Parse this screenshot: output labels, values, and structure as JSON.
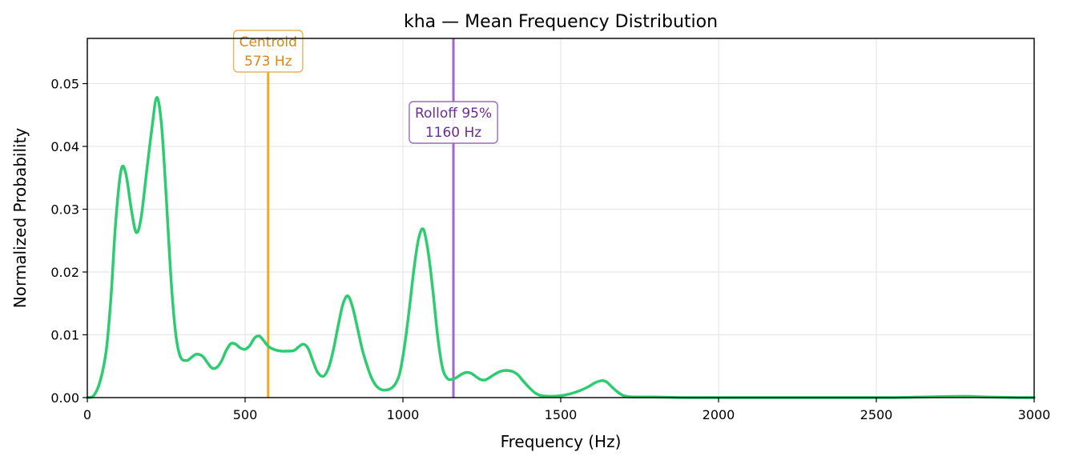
{
  "chart_data": {
    "type": "line",
    "title": "kha  —  Mean Frequency Distribution",
    "xlabel": "Frequency (Hz)",
    "ylabel": "Normalized Probability",
    "xlim": [
      0,
      3000
    ],
    "ylim": [
      0,
      0.0572
    ],
    "grid": true,
    "x_ticks": [
      0,
      500,
      1000,
      1500,
      2000,
      2500,
      3000
    ],
    "y_ticks": [
      0.0,
      0.01,
      0.02,
      0.03,
      0.04,
      0.05
    ],
    "x_tick_labels": [
      "0",
      "500",
      "1000",
      "1500",
      "2000",
      "2500",
      "3000"
    ],
    "y_tick_labels": [
      "0.00",
      "0.01",
      "0.02",
      "0.03",
      "0.04",
      "0.05"
    ],
    "series": [
      {
        "color": "#2ecc71",
        "points": [
          [
            0,
            0.0
          ],
          [
            20,
            0.0003
          ],
          [
            40,
            0.0025
          ],
          [
            60,
            0.0075
          ],
          [
            75,
            0.016
          ],
          [
            90,
            0.028
          ],
          [
            107,
            0.0362
          ],
          [
            122,
            0.0357
          ],
          [
            140,
            0.0298
          ],
          [
            155,
            0.0263
          ],
          [
            170,
            0.0285
          ],
          [
            188,
            0.036
          ],
          [
            205,
            0.043
          ],
          [
            220,
            0.0478
          ],
          [
            235,
            0.0435
          ],
          [
            250,
            0.032
          ],
          [
            265,
            0.019
          ],
          [
            280,
            0.0102
          ],
          [
            295,
            0.0065
          ],
          [
            315,
            0.0059
          ],
          [
            330,
            0.0064
          ],
          [
            345,
            0.0069
          ],
          [
            365,
            0.0066
          ],
          [
            380,
            0.0056
          ],
          [
            395,
            0.0047
          ],
          [
            410,
            0.0048
          ],
          [
            425,
            0.0058
          ],
          [
            440,
            0.0075
          ],
          [
            455,
            0.0086
          ],
          [
            470,
            0.0085
          ],
          [
            485,
            0.0079
          ],
          [
            500,
            0.0077
          ],
          [
            515,
            0.0083
          ],
          [
            530,
            0.0095
          ],
          [
            545,
            0.0098
          ],
          [
            560,
            0.009
          ],
          [
            575,
            0.0081
          ],
          [
            595,
            0.0076
          ],
          [
            615,
            0.0074
          ],
          [
            635,
            0.0074
          ],
          [
            655,
            0.0075
          ],
          [
            670,
            0.0081
          ],
          [
            685,
            0.0085
          ],
          [
            700,
            0.0078
          ],
          [
            715,
            0.0058
          ],
          [
            730,
            0.004
          ],
          [
            748,
            0.0034
          ],
          [
            765,
            0.0048
          ],
          [
            780,
            0.0077
          ],
          [
            795,
            0.0115
          ],
          [
            810,
            0.0149
          ],
          [
            825,
            0.0162
          ],
          [
            840,
            0.0145
          ],
          [
            855,
            0.0113
          ],
          [
            870,
            0.0079
          ],
          [
            885,
            0.0053
          ],
          [
            900,
            0.0032
          ],
          [
            915,
            0.0019
          ],
          [
            930,
            0.0013
          ],
          [
            945,
            0.0012
          ],
          [
            960,
            0.0014
          ],
          [
            975,
            0.0021
          ],
          [
            990,
            0.0039
          ],
          [
            1005,
            0.0082
          ],
          [
            1020,
            0.014
          ],
          [
            1035,
            0.0205
          ],
          [
            1050,
            0.0254
          ],
          [
            1065,
            0.0268
          ],
          [
            1080,
            0.0232
          ],
          [
            1095,
            0.017
          ],
          [
            1110,
            0.0098
          ],
          [
            1125,
            0.0048
          ],
          [
            1140,
            0.0031
          ],
          [
            1155,
            0.0029
          ],
          [
            1170,
            0.0032
          ],
          [
            1185,
            0.0037
          ],
          [
            1200,
            0.004
          ],
          [
            1215,
            0.0039
          ],
          [
            1230,
            0.0034
          ],
          [
            1245,
            0.0029
          ],
          [
            1260,
            0.0028
          ],
          [
            1275,
            0.0032
          ],
          [
            1290,
            0.0037
          ],
          [
            1305,
            0.0041
          ],
          [
            1320,
            0.0043
          ],
          [
            1335,
            0.0043
          ],
          [
            1350,
            0.0041
          ],
          [
            1365,
            0.0036
          ],
          [
            1380,
            0.0027
          ],
          [
            1400,
            0.0016
          ],
          [
            1420,
            0.0007
          ],
          [
            1440,
            0.0003
          ],
          [
            1470,
            0.0002
          ],
          [
            1500,
            0.0003
          ],
          [
            1530,
            0.0006
          ],
          [
            1560,
            0.0011
          ],
          [
            1590,
            0.0018
          ],
          [
            1610,
            0.0024
          ],
          [
            1630,
            0.0027
          ],
          [
            1645,
            0.0025
          ],
          [
            1660,
            0.0018
          ],
          [
            1680,
            0.0009
          ],
          [
            1700,
            0.0003
          ],
          [
            1730,
            0.0001
          ],
          [
            1800,
            0.0001
          ],
          [
            1900,
            0.0
          ],
          [
            2000,
            0.0
          ],
          [
            2200,
            0.0
          ],
          [
            2400,
            0.0
          ],
          [
            2550,
            0.0
          ],
          [
            2650,
            0.0001
          ],
          [
            2780,
            0.0002
          ],
          [
            2850,
            0.0001
          ],
          [
            2950,
            0.0
          ],
          [
            3000,
            0.0
          ]
        ]
      }
    ],
    "vlines": [
      {
        "x": 573,
        "color": "#f5a623",
        "label_line1": "Centroid",
        "label_line2": "573 Hz",
        "text_color": "#d4881c",
        "box_edge": "#e8b35a"
      },
      {
        "x": 1160,
        "color": "#a566c9",
        "label_line1": "Rolloff 95%",
        "label_line2": "1160 Hz",
        "text_color": "#6a2d8f",
        "box_edge": "#9a6cb8"
      }
    ]
  }
}
